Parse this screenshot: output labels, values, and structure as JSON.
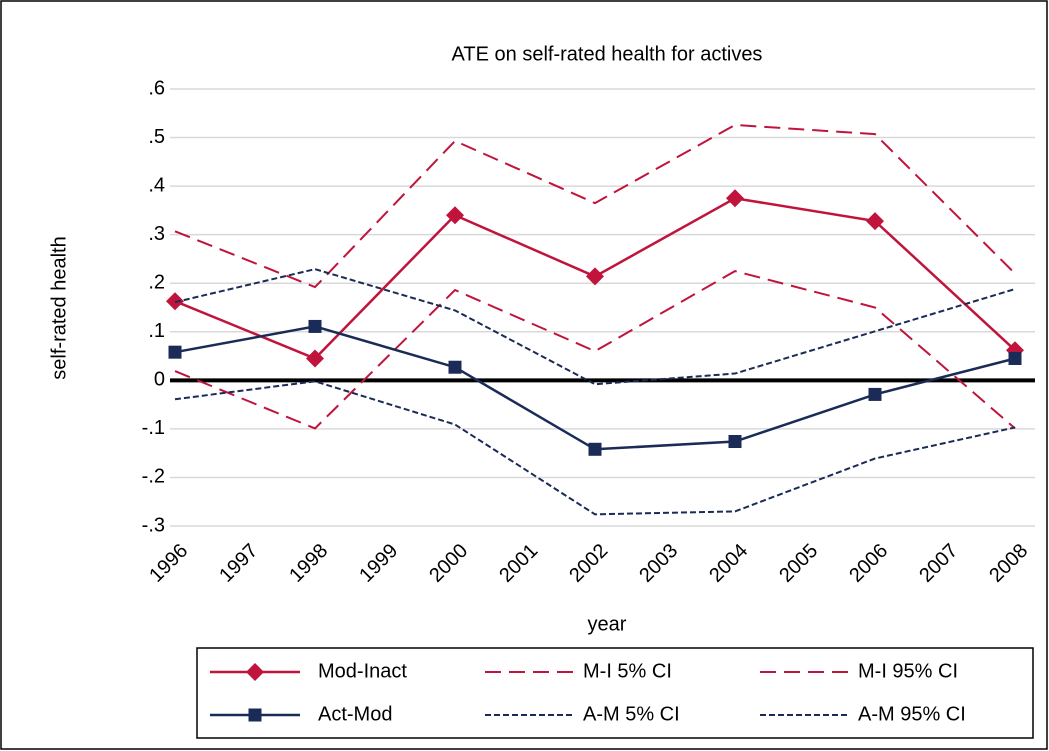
{
  "chart_data": {
    "type": "line",
    "title": "ATE on self-rated health for actives",
    "xlabel": "year",
    "ylabel": "self-rated health",
    "x": [
      1996,
      1998,
      2000,
      2002,
      2004,
      2006,
      2008
    ],
    "xlim": [
      1996,
      2008
    ],
    "xticks": [
      1996,
      1997,
      1998,
      1999,
      2000,
      2001,
      2002,
      2003,
      2004,
      2005,
      2006,
      2007,
      2008
    ],
    "ylim": [
      -0.3,
      0.6
    ],
    "yticks": [
      {
        "value": -0.3,
        "label": "-.3"
      },
      {
        "value": -0.2,
        "label": "-.2"
      },
      {
        "value": -0.1,
        "label": "-.1"
      },
      0,
      {
        "value": 0.1,
        "label": ".1"
      },
      {
        "value": 0.2,
        "label": ".2"
      },
      {
        "value": 0.3,
        "label": ".3"
      },
      {
        "value": 0.4,
        "label": ".4"
      },
      {
        "value": 0.5,
        "label": ".5"
      },
      {
        "value": 0.6,
        "label": ".6"
      }
    ],
    "grid": true,
    "reference_line": 0,
    "series": [
      {
        "name": "Mod-Inact",
        "color": "#c0143c",
        "style": "solid",
        "marker": "diamond",
        "values": [
          0.163,
          0.045,
          0.34,
          0.214,
          0.375,
          0.328,
          0.062
        ]
      },
      {
        "name": "M-I 5% CI",
        "color": "#c0143c",
        "style": "longdash",
        "values": [
          0.019,
          -0.099,
          0.186,
          0.06,
          0.225,
          0.15,
          -0.099
        ]
      },
      {
        "name": "M-I 95% CI",
        "color": "#c0143c",
        "style": "longdash",
        "values": [
          0.307,
          0.192,
          0.493,
          0.365,
          0.526,
          0.507,
          0.22
        ]
      },
      {
        "name": "Act-Mod",
        "color": "#1a2b57",
        "style": "solid",
        "marker": "square",
        "values": [
          0.058,
          0.111,
          0.027,
          -0.142,
          -0.126,
          -0.029,
          0.045
        ]
      },
      {
        "name": "A-M 5% CI",
        "color": "#1a2b57",
        "style": "shortdash",
        "values": [
          -0.039,
          -0.002,
          -0.091,
          -0.276,
          -0.27,
          -0.161,
          -0.097
        ]
      },
      {
        "name": "A-M 95% CI",
        "color": "#1a2b57",
        "style": "shortdash",
        "values": [
          0.161,
          0.229,
          0.144,
          -0.008,
          0.014,
          0.101,
          0.188
        ]
      }
    ]
  }
}
